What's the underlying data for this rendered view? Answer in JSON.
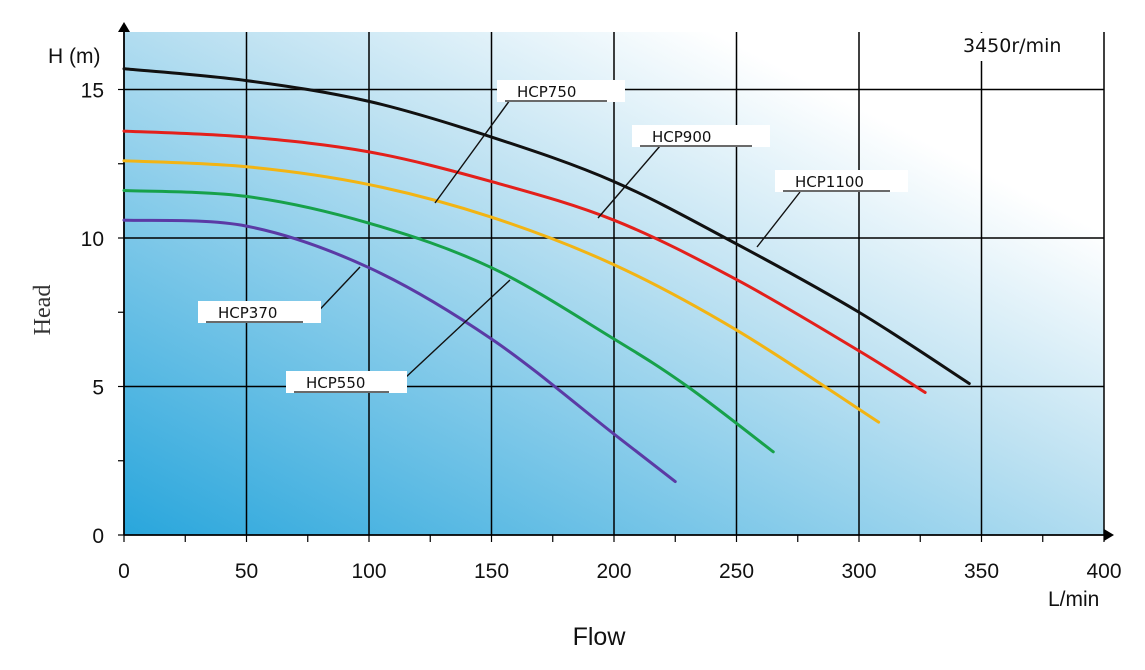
{
  "chart_data": {
    "type": "line",
    "title": "",
    "annotation": "3450r/min",
    "xlabel": "Flow",
    "x_unit": "L/min",
    "ylabel": "Head",
    "y_unit": "H (m)",
    "xlim": [
      0,
      400
    ],
    "ylim": [
      0,
      16.5
    ],
    "x_ticks": [
      0,
      50,
      100,
      150,
      200,
      250,
      300,
      350,
      400
    ],
    "y_ticks": [
      0,
      5,
      10,
      15
    ],
    "grid": true,
    "legend": "none (curves labeled with callouts)",
    "series": [
      {
        "name": "HCP1100",
        "color": "#111111",
        "x": [
          0,
          50,
          100,
          150,
          200,
          250,
          300,
          345
        ],
        "y": [
          15.7,
          15.3,
          14.6,
          13.4,
          11.9,
          9.8,
          7.5,
          5.1
        ]
      },
      {
        "name": "HCP900",
        "color": "#e3201b",
        "x": [
          0,
          50,
          100,
          150,
          200,
          250,
          300,
          327
        ],
        "y": [
          13.6,
          13.4,
          12.9,
          11.9,
          10.6,
          8.6,
          6.2,
          4.8
        ]
      },
      {
        "name": "HCP750",
        "color": "#f2b414",
        "x": [
          0,
          50,
          100,
          150,
          200,
          250,
          308
        ],
        "y": [
          12.6,
          12.4,
          11.8,
          10.7,
          9.1,
          6.9,
          3.8
        ]
      },
      {
        "name": "HCP550",
        "color": "#17a14a",
        "x": [
          0,
          50,
          100,
          150,
          200,
          230,
          265
        ],
        "y": [
          11.6,
          11.4,
          10.5,
          9.0,
          6.6,
          5.0,
          2.8
        ]
      },
      {
        "name": "HCP370",
        "color": "#5b3aa5",
        "x": [
          0,
          50,
          100,
          150,
          200,
          225
        ],
        "y": [
          10.6,
          10.4,
          9.0,
          6.6,
          3.4,
          1.8
        ]
      }
    ],
    "callouts": [
      {
        "series": "HCP750"
      },
      {
        "series": "HCP900"
      },
      {
        "series": "HCP1100"
      },
      {
        "series": "HCP370"
      },
      {
        "series": "HCP550"
      }
    ]
  },
  "colors": {
    "gradient_dark": "#29a6dc",
    "gradient_light": "#ffffff",
    "grid": "#000000"
  }
}
